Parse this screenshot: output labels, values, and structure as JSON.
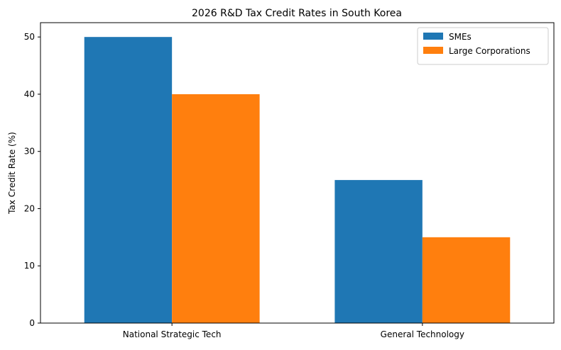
{
  "chart_data": {
    "type": "bar",
    "title": "2026 R&D Tax Credit Rates in South Korea",
    "xlabel": "",
    "ylabel": "Tax Credit Rate (%)",
    "categories": [
      "National Strategic Tech",
      "General Technology"
    ],
    "series": [
      {
        "name": "SMEs",
        "values": [
          50,
          25
        ],
        "color": "#1f77b4"
      },
      {
        "name": "Large Corporations",
        "values": [
          40,
          15
        ],
        "color": "#ff7f0e"
      }
    ],
    "ylim": [
      0,
      52.5
    ],
    "yticks": [
      0,
      10,
      20,
      30,
      40,
      50
    ],
    "grid": false,
    "legend_position": "top-right"
  }
}
